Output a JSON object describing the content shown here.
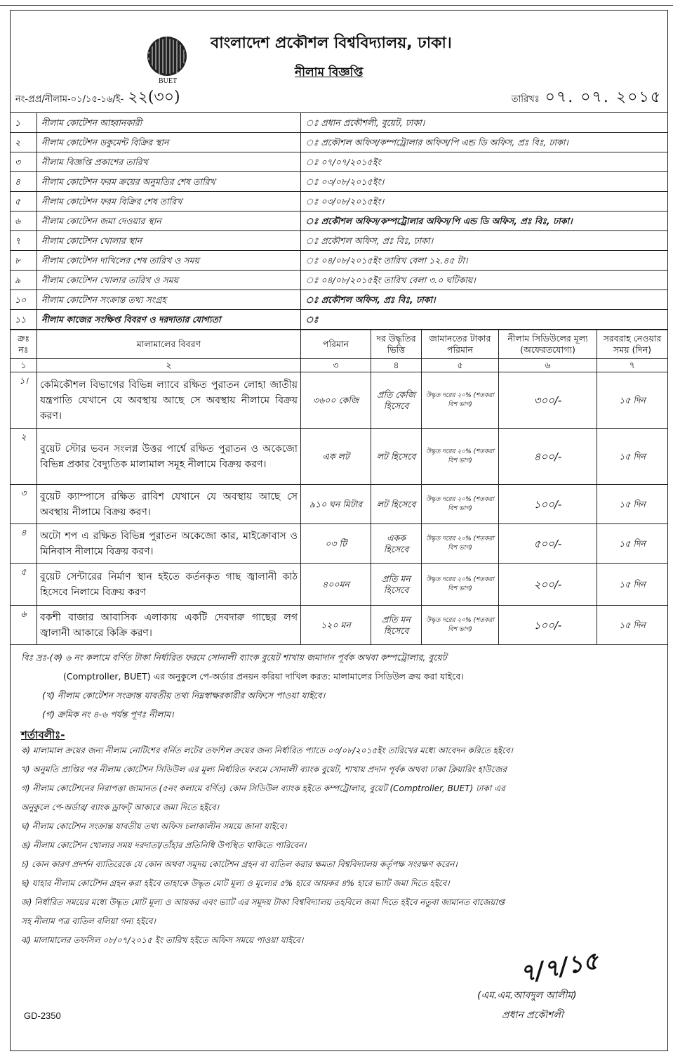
{
  "header": {
    "logo_text": "BUET",
    "title": "বাংলাদেশ প্রকৌশল বিশ্ববিদ্যালয়, ঢাকা।",
    "subtitle": "নীলাম বিজ্ঞপ্তি",
    "ref_prefix": "নং-প্রপ্র/নীলাম-০১/১৫-১৬/ই-",
    "ref_handwritten": "২২(৩০)",
    "date_label": "তারিখঃ",
    "date_handwritten": "০৭. ০৭. ২০১৫"
  },
  "info_rows": [
    {
      "no": "১",
      "label": "নীলাম কোটেশন আহ্বানকারী",
      "value": "ঃ প্রধান প্রকৌশলী, বুয়েট, ঢাকা।",
      "bold": false
    },
    {
      "no": "২",
      "label": "নীলাম কোটেশন ডকুমেন্ট বিক্রির স্থান",
      "value": "ঃ প্রকৌশল অফিস/কম্পট্রোলার অফিস/পি এন্ড ডি অফিস, প্রঃ বিঃ, ঢাকা।",
      "bold": false
    },
    {
      "no": "৩",
      "label": "নীলাম বিজ্ঞপ্তি প্রকাশের তারিখ",
      "value": "ঃ ০৭/০৭/২০১৫ইং",
      "bold": false
    },
    {
      "no": "৪",
      "label": "নীলাম কোটেশন ফরম ক্রয়ের অনুমতির শেষ তারিখ",
      "value": "ঃ ০৩/০৮/২০১৫ইং।",
      "bold": false
    },
    {
      "no": "৫",
      "label": "নীলাম কোটেশন ফরম বিক্রির শেষ তারিখ",
      "value": "ঃ ০৩/০৮/২০১৫ইং।",
      "bold": false
    },
    {
      "no": "৬",
      "label": "নীলাম কোটেশন জমা দেওয়ার স্থান",
      "value": "ঃ প্রকৌশল অফিস/কম্পট্রোলার অফিস/পি এন্ড ডি অফিস, প্রঃ বিঃ,  ঢাকা।",
      "bold": true
    },
    {
      "no": "৭",
      "label": "নীলাম কোটেশন খোলার স্থান",
      "value": "ঃ প্রকৌশল অফিস, প্রঃ বিঃ, ঢাকা।",
      "bold": false
    },
    {
      "no": "৮",
      "label": "নীলাম কোটেশন দাখিলের শেষ তারিখ ও সময়",
      "value": "ঃ ০৪/০৮/২০১৫ইং তারিখ বেলা ১২.৪৫ টা।",
      "bold": false
    },
    {
      "no": "৯",
      "label": "নীলাম কোটেশন খোলার তারিখ ও সময়",
      "value": "ঃ ০৪/০৮/২০১৫ইং তারিখ বেলা ৩.০ ঘটিকায়।",
      "bold": false
    },
    {
      "no": "১০",
      "label": "নীলাম কোটেশন সংক্রান্ত তথ্য সংগ্রহ",
      "value": "ঃ প্রকৌশল অফিস, প্রঃ বিঃ, ঢাকা।",
      "bold": true
    },
    {
      "no": "১১",
      "label": "নীলাম কাজের সংক্ষিপ্ত বিবরণ ও দরদাতার যোগ্যতা",
      "value": "ঃ",
      "bold": true
    }
  ],
  "items_table": {
    "headers": [
      "ক্রঃ নঃ",
      "মালামালের বিবরণ",
      "পরিমান",
      "দর উদ্ধৃতির ভিত্তি",
      "জামানতের টাকার পরিমান",
      "নীলাম সিডিউলের মূল্য (অফেরতযোগ্য)",
      "সরবরাহ নেওয়ার সময় (দিন)"
    ],
    "column_numbers": [
      "১",
      "২",
      "৩",
      "৪",
      "৫",
      "৬",
      "৭"
    ],
    "rows": [
      {
        "no": "১।",
        "desc": "কেমিকৌশল বিভাগের বিভিন্ন ল্যাবে রক্ষিত পুরাতন লোহা জাতীয় যন্ত্রপাতি যেখানে যে অবস্থায় আছে সে অবস্থায় নীলামে বিক্রয় করণ।",
        "qty": "৩৬০০ কেজি",
        "basis": "প্রতি কেজি হিসেবে",
        "security": "উদ্ধৃত দরের ২০% (শতকরা বিশ ভাগ)",
        "price": "৩০০/-",
        "days": "১৫ দিন"
      },
      {
        "no": "২",
        "desc": "বুয়েট স্টোর ভবন সংলগ্ন উত্তর পার্শ্বে রক্ষিত পুরাতন ও অকেজো বিভিন্ন প্রকার বৈদ্যুতিক মালামাল সমূহ নীলামে বিক্রয় করণ।",
        "qty": "এক লট",
        "basis": "লট হিসেবে",
        "security": "উদ্ধৃত দরের ২০% (শতকরা বিশ ভাগ)",
        "price": "৪০০/-",
        "days": "১৫ দিন"
      },
      {
        "no": "৩",
        "desc": "বুয়েট ক্যাম্পাসে রক্ষিত রাবিশ যেখানে যে অবস্থায় আছে সে অবস্থায় নীলামে বিক্রয় করণ।",
        "qty": "৯১০ ঘন মিটার",
        "basis": "লট হিসেবে",
        "security": "উদ্ধৃত দরের ২০% (শতকরা বিশ ভাগ)",
        "price": "১০০/-",
        "days": "১৫ দিন"
      },
      {
        "no": "৪",
        "desc": "অটো শপ এ রক্ষিত বিভিন্ন পুরাতন অকেজো কার, মাইক্রোবাস ও মিনিবাস নীলামে বিক্রয় করণ।",
        "qty": "০৩ টি",
        "basis": "একক হিসেবে",
        "security": "উদ্ধৃত দরের ২০% (শতকরা বিশ ভাগ)",
        "price": "৫০০/-",
        "days": "১৫ দিন"
      },
      {
        "no": "৫",
        "desc": "বুয়েট সেন্টারের নির্মাণ স্থান হইতে কর্তনকৃত গাছ জ্বালানী কাঠ হিসেবে নিলামে বিক্রয় করণ",
        "qty": "৪০০মন",
        "basis": "প্রতি মন হিসেবে",
        "security": "উদ্ধৃত দরের ২০% (শতকরা বিশ ভাগ)",
        "price": "২০০/-",
        "days": "১৫ দিন"
      },
      {
        "no": "৬",
        "desc": "বকশী বাজার আবাসিক এলাকায় একটি দেবদারু গাছের লগ জ্বালানী আকারে কিক্রি করণ।",
        "qty": "১২০ মন",
        "basis": "প্রতি মন হিসেবে",
        "security": "উদ্ধৃত দরের ২০% (শতকরা বিশ ভাগ)",
        "price": "১০০/-",
        "days": "১৫ দিন"
      }
    ]
  },
  "notes": [
    "বিঃ দ্রঃ-(ক) ৬ নং কলামে বর্ণিত টাকা নির্ধারিত ফরমে সোনালী ব্যাংক বুয়েট শাখায় জমাদান পূর্বক অথবা কম্পট্রোলার, বুয়েট",
    "(Comptroller, BUET) এর অনুকুলে পে-অর্ডার প্রনয়ন করিয়া দাখিল করত: মালামালের সিডিউল ক্রয় করা যাইবে।",
    "(খ) নীলাম কোটেশন সংক্রান্ত যাবতীয় তথ্য নিম্নস্বাক্ষরকারীর অফিসে পাওয়া যাইবে।",
    "(গ) ক্রমিক নং ৪-৬ পর্যন্ত পূণঃ নীলাম।"
  ],
  "conditions_heading": "শর্তাবলীঃ-",
  "conditions": [
    "ক) মালামাল ক্রয়ের জন্য নীলাম নোটিশের বর্নিত লটের তফশিল ক্রয়ের জন্য নির্ধারিত প্যাডে  ০৩/০৮/২০১৫ইং তারিখের মধ্যে আবেদন করিতে হইবে।",
    "খ) অনুমতি প্রাপ্তির পর নীলাম কোটেশন সিডিউল এর মূল্য নির্ধারিত ফরমে সোনালী ব্যাংক বুয়েট, শাখায় প্রদান পূর্বক অথবা ঢাকা ক্লিয়ারিং হাউজের",
    "গ) নীলাম কোটেশনের নিরাপত্তা জামানত (৫নং কলামে বর্ণিত) কোন সিডিউল ব্যাংক হইতে কম্পট্রোলার, বুয়েট (Comptroller, BUET) ঢাকা এর",
    "অনুকুলে পে-অর্ডার/ ব্যাংক ড্রাফট্ আকারে জমা দিতে হইবে।",
    "ঘ) নীলাম কোটেশন সংক্রান্ত যাবতীয় তথ্য অফিস চলাকালীন সময়ে জানা যাইবে।",
    "ঙ) নীলাম কোটেশন খোলার সময় দরদাতা/তাঁহার প্রতিনিধি উপস্থিত থাকিতে পারিবেন।",
    "চ) কোন কারণ প্রদর্শন ব্যাতিরেকে যে কোন অথবা সমূদয় কোটেশন গ্রহন বা বাতিল করার ক্ষমতা বিশ্ববিদ্যালয় কর্তৃপক্ষ সংরক্ষণ করেন।",
    "ছ) যাহার নীলাম কোটেশন গ্রহন করা হইবে তাহাকে উদ্ধৃত মোট মূল্য ও মূল্যের ৫% হারে আয়কর ৪% হারে ভ্যাট জমা দিতে হইবে।",
    "জ) নির্ধারিত সময়ের মধ্যে উদ্ধৃত মোট মূল্য ও আয়কর এবং ভ্যাট এর সমূদয় টাকা বিশ্ববিদ্যালয় তহবিলে জমা দিতে হইবে নতুবা জামানত বাজেয়াপ্ত",
    "সহ নীলাম পত্র বাতিল বলিয়া গন্য হইবে।",
    "ঝ) মালামালের তফসিল ০৮/০৭/২০১৫ ইং তারিখ হইতে অফিস সময়ে পাওয়া যাইবে।"
  ],
  "signature": {
    "handwritten": "৭/৭/১৫",
    "name": "(এম.এম.আবদুল আলীম)",
    "title": "প্রধান প্রকৌশলী"
  },
  "footer_code": "GD-2350"
}
